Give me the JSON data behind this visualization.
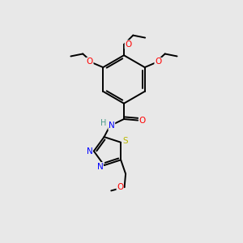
{
  "background_color": "#e8e8e8",
  "bond_color": "#000000",
  "atom_colors": {
    "O": "#ff0000",
    "N": "#0000ff",
    "S": "#b8b800",
    "H": "#4a9a8a",
    "C": "#000000"
  },
  "figsize": [
    3.0,
    3.0
  ],
  "dpi": 100
}
